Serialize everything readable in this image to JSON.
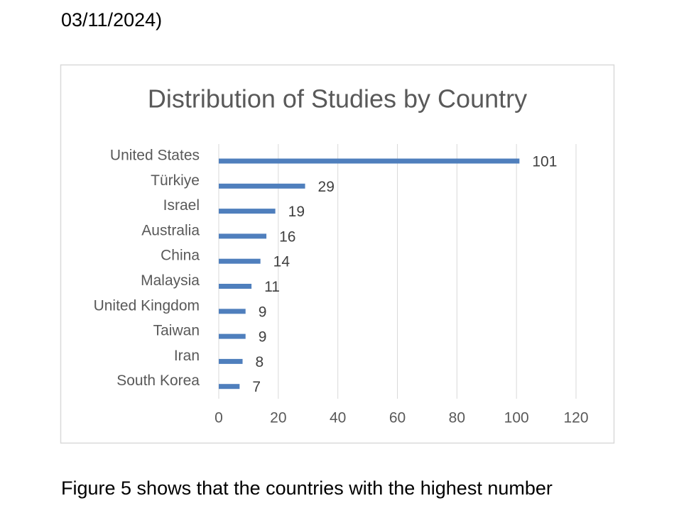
{
  "document": {
    "text_before": "03/11/2024)",
    "text_after": "Figure 5 shows that the countries with the highest number"
  },
  "chart_data": {
    "type": "hbar",
    "title": "Distribution of Studies by Country",
    "categories": [
      "United States",
      "Türkiye",
      "Israel",
      "Australia",
      "China",
      "Malaysia",
      "United Kingdom",
      "Taiwan",
      "Iran",
      "South Korea"
    ],
    "values": [
      101,
      29,
      19,
      16,
      14,
      11,
      9,
      9,
      8,
      7
    ],
    "color": "#4f7fbd",
    "xlim": [
      0,
      120
    ],
    "xticks": [
      0,
      20,
      40,
      60,
      80,
      100,
      120
    ],
    "grid": true
  }
}
